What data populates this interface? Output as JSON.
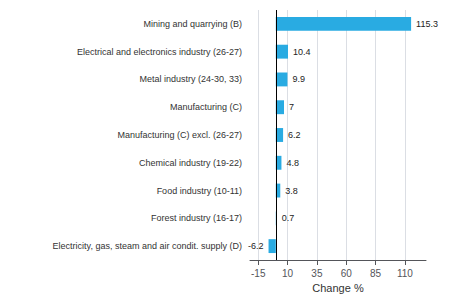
{
  "chart_data": {
    "type": "bar",
    "orientation": "horizontal",
    "categories": [
      "Electricity, gas, steam and air condit. supply (D)",
      "Forest industry (16-17)",
      "Food industry (10-11)",
      "Chemical industry (19-22)",
      "Manufacturing (C) excl. (26-27)",
      "Manufacturing (C)",
      "Metal industry (24-30, 33)",
      "Electrical and electronics industry (26-27)",
      "Mining and quarrying (B)"
    ],
    "values": [
      -6.2,
      0.7,
      3.8,
      4.8,
      6.2,
      7.0,
      9.9,
      10.4,
      115.3
    ],
    "color": "#29abe2",
    "xlabel": "Change %",
    "xlim": [
      -22,
      128
    ],
    "xticks": [
      -15,
      10,
      35,
      60,
      85,
      110
    ],
    "grid": true,
    "data_labels": true
  }
}
